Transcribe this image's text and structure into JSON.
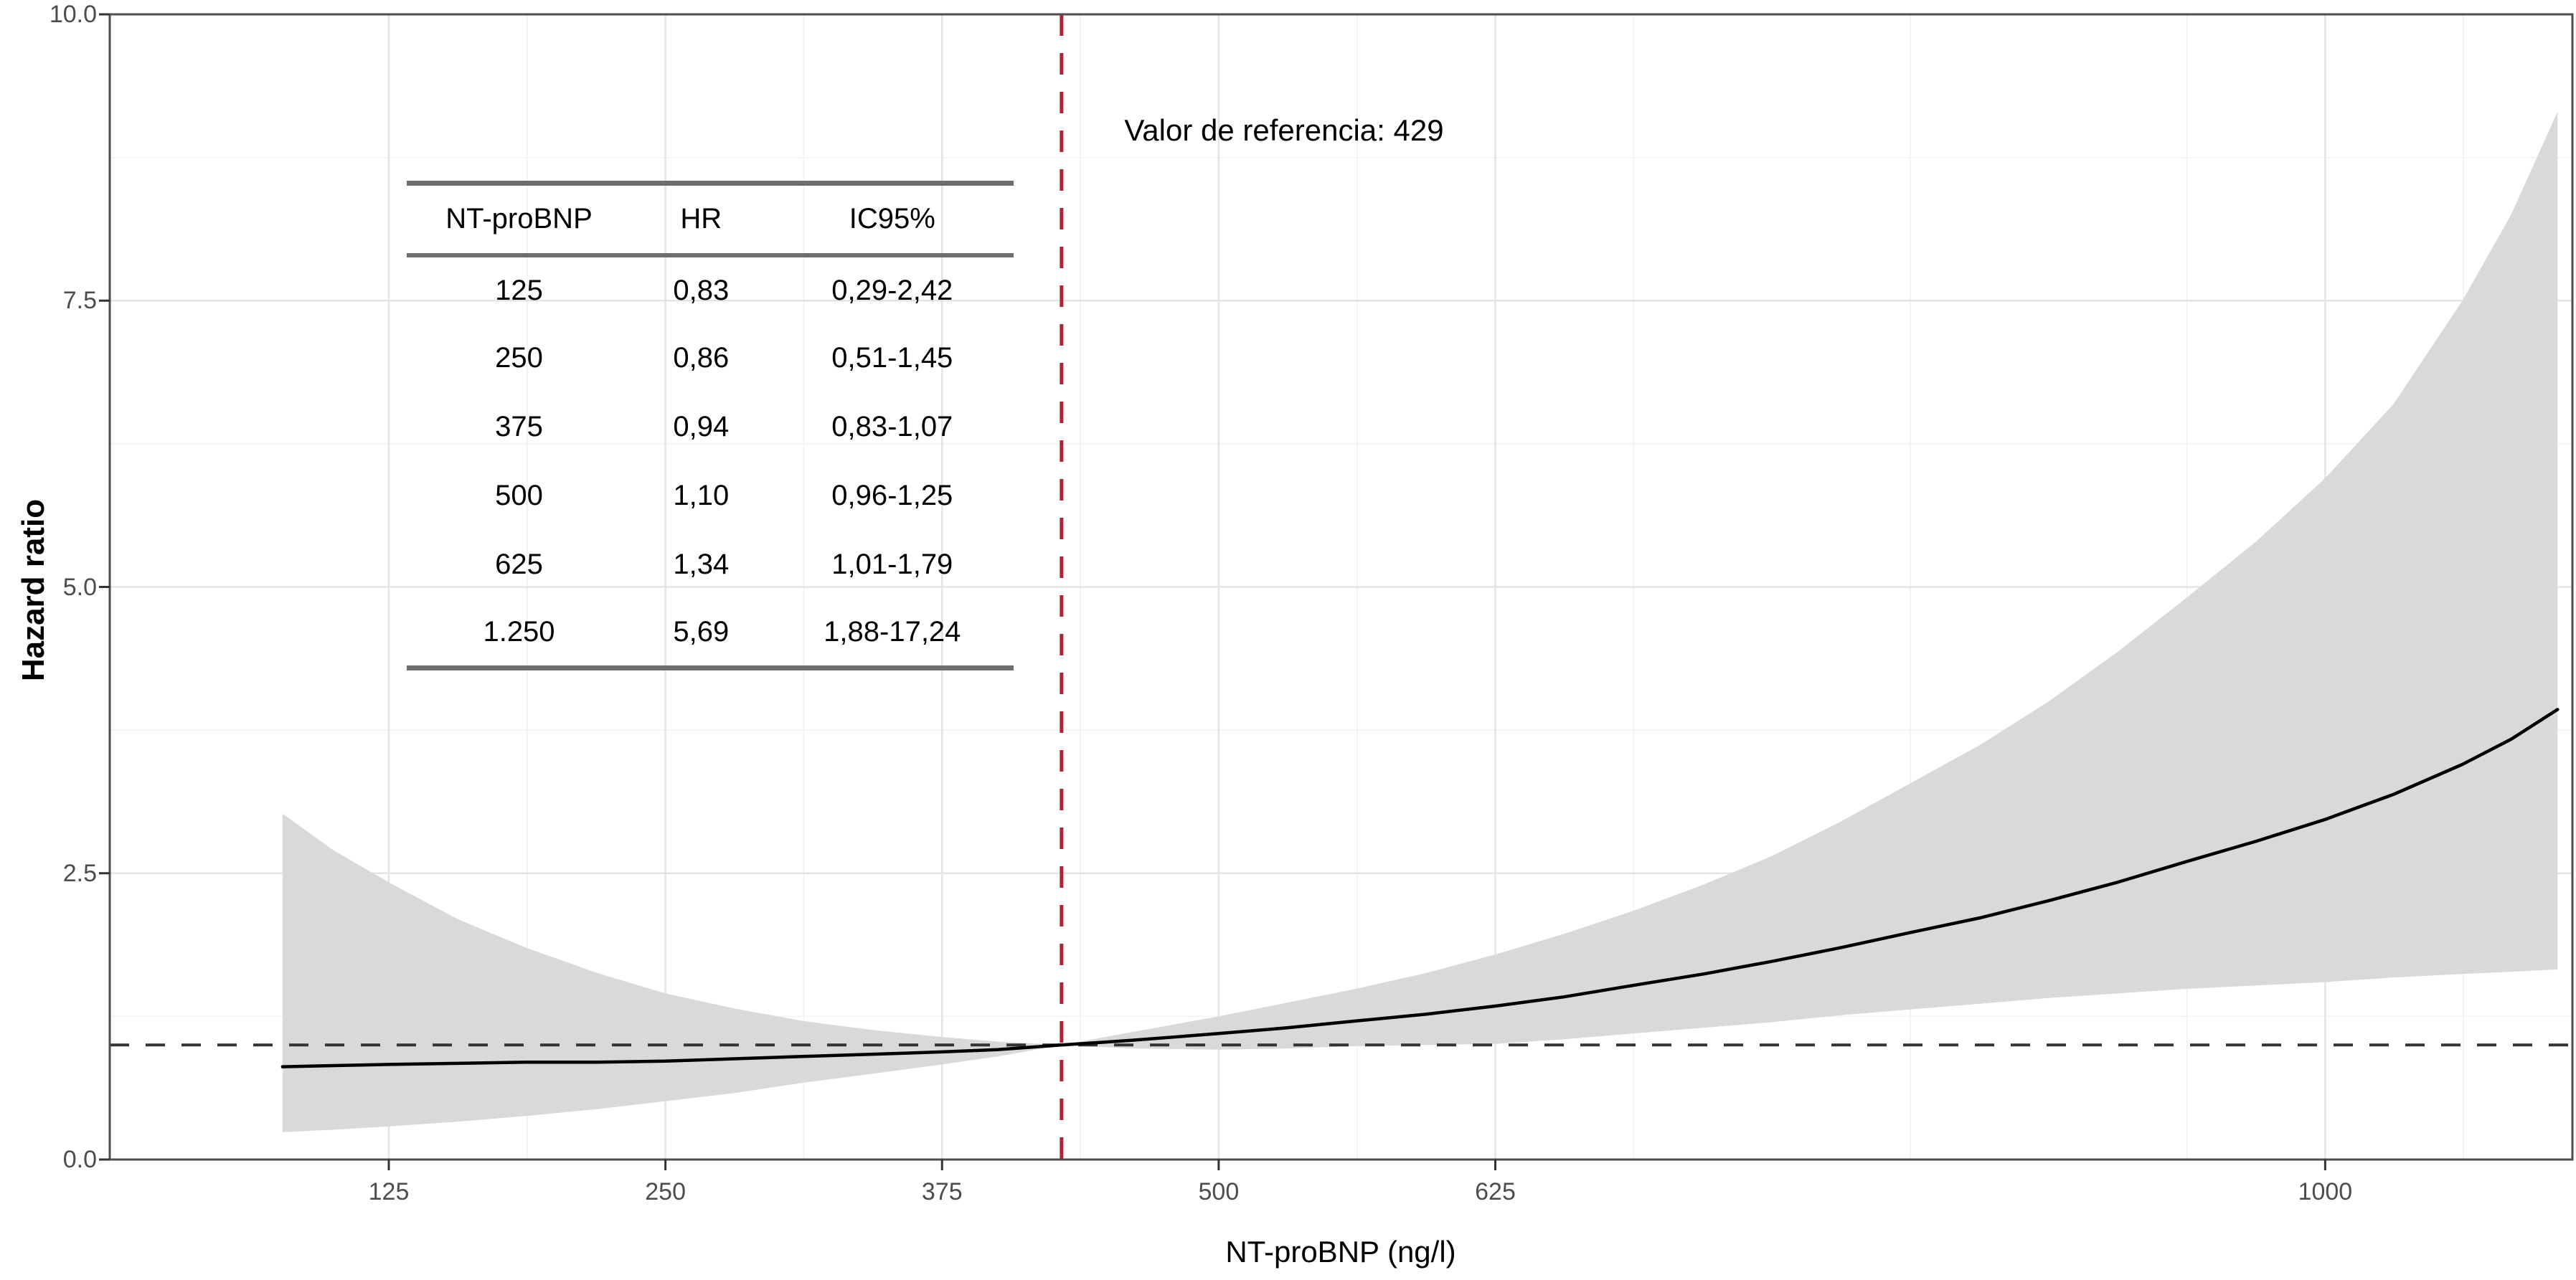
{
  "figure": {
    "y_axis": {
      "title": "Hazard ratio",
      "tick_labels": [
        "0.0",
        "2.5",
        "5.0",
        "7.5",
        "10.0"
      ],
      "tick_values": [
        0,
        2.5,
        5,
        7.5,
        10
      ],
      "minor_values": [
        1.25,
        3.75,
        6.25,
        8.75
      ],
      "range": [
        0,
        10
      ]
    },
    "x_axis": {
      "title": "NT-proBNP (ng/l)",
      "tick_labels": [
        "125",
        "250",
        "375",
        "500",
        "625",
        "1000"
      ],
      "tick_values": [
        125,
        250,
        375,
        500,
        625,
        1000
      ],
      "minor_values": [
        187.5,
        312.5,
        437.5,
        562.5,
        687.5,
        812.5,
        937.5,
        1062.5
      ],
      "range": [
        77,
        1111
      ]
    },
    "annotation": {
      "text": "Valor de referencia: 429",
      "reference_value": 429
    },
    "colors": {
      "ribbon": "#d9d9d9",
      "curve": "#000000",
      "hr1_dashed_line": "#333333",
      "reference_dashed_line": "#b22236",
      "grid_major": "#e4e4e4",
      "grid_minor": "#f1f1f1",
      "panel_border": "#4d4d4d",
      "tick_label": "#4d4d4d"
    }
  },
  "table": {
    "headers": [
      "NT-proBNP",
      "HR",
      "IC95%"
    ],
    "rows": [
      [
        "125",
        "0,83",
        "0,29-2,42"
      ],
      [
        "250",
        "0,86",
        "0,51-1,45"
      ],
      [
        "375",
        "0,94",
        "0,83-1,07"
      ],
      [
        "500",
        "1,10",
        "0,96-1,25"
      ],
      [
        "625",
        "1,34",
        "1,01-1,79"
      ],
      [
        "1.250",
        "5,69",
        "1,88-17,24"
      ]
    ]
  },
  "chart_data": {
    "type": "line",
    "title": "",
    "xlabel": "NT-proBNP (ng/l)",
    "ylabel": "Hazard ratio",
    "xlim": [
      77,
      1111
    ],
    "ylim": [
      0,
      10
    ],
    "grid": true,
    "reference_x": 429,
    "hr_reference_y": 1.0,
    "series": [
      {
        "name": "hazard-ratio-curve",
        "x": [
          77,
          100,
          125,
          156,
          187,
          219,
          250,
          281,
          312,
          344,
          375,
          400,
          429,
          460,
          500,
          531,
          562,
          594,
          625,
          656,
          687,
          719,
          750,
          781,
          812,
          844,
          875,
          906,
          937,
          969,
          1000,
          1031,
          1062,
          1084,
          1105
        ],
        "y": [
          0.81,
          0.82,
          0.83,
          0.84,
          0.85,
          0.85,
          0.86,
          0.88,
          0.9,
          0.92,
          0.94,
          0.96,
          1.0,
          1.04,
          1.1,
          1.15,
          1.21,
          1.27,
          1.34,
          1.42,
          1.52,
          1.62,
          1.73,
          1.85,
          1.98,
          2.11,
          2.26,
          2.42,
          2.6,
          2.78,
          2.97,
          3.19,
          3.45,
          3.67,
          3.93
        ]
      },
      {
        "name": "ci-lower",
        "x": [
          77,
          100,
          125,
          156,
          187,
          219,
          250,
          281,
          312,
          344,
          375,
          400,
          429,
          460,
          500,
          531,
          562,
          594,
          625,
          656,
          687,
          719,
          750,
          781,
          812,
          844,
          875,
          906,
          937,
          969,
          1000,
          1031,
          1062,
          1084,
          1105
        ],
        "y": [
          0.24,
          0.26,
          0.29,
          0.33,
          0.38,
          0.44,
          0.51,
          0.58,
          0.67,
          0.75,
          0.83,
          0.9,
          1.0,
          0.97,
          0.96,
          0.97,
          0.99,
          1.0,
          1.01,
          1.05,
          1.1,
          1.15,
          1.2,
          1.26,
          1.31,
          1.36,
          1.41,
          1.45,
          1.49,
          1.52,
          1.55,
          1.59,
          1.62,
          1.64,
          1.66
        ]
      },
      {
        "name": "ci-upper",
        "x": [
          77,
          100,
          125,
          156,
          187,
          219,
          250,
          281,
          312,
          344,
          375,
          400,
          429,
          460,
          500,
          531,
          562,
          594,
          625,
          656,
          687,
          719,
          750,
          781,
          812,
          844,
          875,
          906,
          937,
          969,
          1000,
          1031,
          1062,
          1084,
          1105
        ],
        "y": [
          3.02,
          2.7,
          2.42,
          2.1,
          1.85,
          1.63,
          1.45,
          1.32,
          1.21,
          1.13,
          1.07,
          1.03,
          1.0,
          1.11,
          1.25,
          1.37,
          1.49,
          1.63,
          1.79,
          1.97,
          2.17,
          2.4,
          2.65,
          2.95,
          3.28,
          3.62,
          4.0,
          4.43,
          4.9,
          5.4,
          5.95,
          6.6,
          7.5,
          8.25,
          9.15
        ]
      }
    ]
  }
}
